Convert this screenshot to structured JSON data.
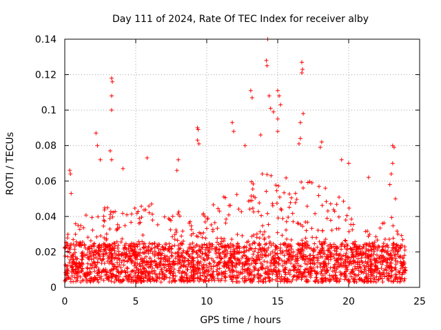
{
  "chart_data": {
    "type": "scatter",
    "title": "Day 111 of 2024, Rate Of TEC Index for receiver alby",
    "xlabel": "GPS time / hours",
    "ylabel": "ROTI / TECUs",
    "xlim": [
      0,
      25
    ],
    "ylim": [
      0,
      0.14
    ],
    "xticks": [
      0,
      5,
      10,
      15,
      20,
      25
    ],
    "xtick_labels": [
      "0",
      "5",
      "10",
      "15",
      "20",
      "25"
    ],
    "yticks": [
      0,
      0.02,
      0.04,
      0.06,
      0.08,
      0.1,
      0.12,
      0.14
    ],
    "ytick_labels": [
      "0",
      "0.02",
      "0.04",
      "0.06",
      "0.08",
      "0.1",
      "0.12",
      "0.14"
    ],
    "grid": true,
    "marker": "+",
    "marker_color": "#ff0000",
    "series": [
      {
        "name": "ROTI",
        "data_extent_hours": [
          0,
          24
        ],
        "notable_points": [
          {
            "x": 0.35,
            "y": 0.066
          },
          {
            "x": 0.4,
            "y": 0.064
          },
          {
            "x": 0.45,
            "y": 0.053
          },
          {
            "x": 2.2,
            "y": 0.087
          },
          {
            "x": 2.3,
            "y": 0.08
          },
          {
            "x": 2.5,
            "y": 0.072
          },
          {
            "x": 3.3,
            "y": 0.118
          },
          {
            "x": 3.35,
            "y": 0.116
          },
          {
            "x": 3.3,
            "y": 0.108
          },
          {
            "x": 3.3,
            "y": 0.1
          },
          {
            "x": 3.2,
            "y": 0.077
          },
          {
            "x": 3.3,
            "y": 0.072
          },
          {
            "x": 4.1,
            "y": 0.067
          },
          {
            "x": 5.8,
            "y": 0.073
          },
          {
            "x": 8.0,
            "y": 0.072
          },
          {
            "x": 7.9,
            "y": 0.066
          },
          {
            "x": 9.35,
            "y": 0.09
          },
          {
            "x": 9.4,
            "y": 0.089
          },
          {
            "x": 9.35,
            "y": 0.083
          },
          {
            "x": 9.45,
            "y": 0.081
          },
          {
            "x": 11.8,
            "y": 0.093
          },
          {
            "x": 11.9,
            "y": 0.088
          },
          {
            "x": 12.7,
            "y": 0.08
          },
          {
            "x": 13.1,
            "y": 0.111
          },
          {
            "x": 13.2,
            "y": 0.107
          },
          {
            "x": 13.8,
            "y": 0.086
          },
          {
            "x": 14.2,
            "y": 0.128
          },
          {
            "x": 14.25,
            "y": 0.125
          },
          {
            "x": 14.3,
            "y": 0.14
          },
          {
            "x": 14.4,
            "y": 0.108
          },
          {
            "x": 14.5,
            "y": 0.101
          },
          {
            "x": 14.7,
            "y": 0.099
          },
          {
            "x": 15.0,
            "y": 0.111
          },
          {
            "x": 15.1,
            "y": 0.108
          },
          {
            "x": 15.0,
            "y": 0.095
          },
          {
            "x": 15.2,
            "y": 0.103
          },
          {
            "x": 15.0,
            "y": 0.088
          },
          {
            "x": 16.7,
            "y": 0.127
          },
          {
            "x": 16.75,
            "y": 0.123
          },
          {
            "x": 16.7,
            "y": 0.121
          },
          {
            "x": 16.8,
            "y": 0.098
          },
          {
            "x": 16.6,
            "y": 0.093
          },
          {
            "x": 16.6,
            "y": 0.084
          },
          {
            "x": 16.5,
            "y": 0.081
          },
          {
            "x": 18.1,
            "y": 0.082
          },
          {
            "x": 18.0,
            "y": 0.079
          },
          {
            "x": 19.5,
            "y": 0.072
          },
          {
            "x": 20.0,
            "y": 0.07
          },
          {
            "x": 21.4,
            "y": 0.062
          },
          {
            "x": 23.1,
            "y": 0.08
          },
          {
            "x": 23.2,
            "y": 0.079
          },
          {
            "x": 23.1,
            "y": 0.07
          },
          {
            "x": 23.0,
            "y": 0.064
          },
          {
            "x": 22.9,
            "y": 0.058
          },
          {
            "x": 23.3,
            "y": 0.05
          }
        ],
        "envelope": [
          {
            "x": 0,
            "y": 0.035
          },
          {
            "x": 1,
            "y": 0.04
          },
          {
            "x": 2,
            "y": 0.045
          },
          {
            "x": 3,
            "y": 0.05
          },
          {
            "x": 4,
            "y": 0.045
          },
          {
            "x": 5,
            "y": 0.045
          },
          {
            "x": 6,
            "y": 0.05
          },
          {
            "x": 7,
            "y": 0.04
          },
          {
            "x": 8,
            "y": 0.045
          },
          {
            "x": 9,
            "y": 0.04
          },
          {
            "x": 10,
            "y": 0.045
          },
          {
            "x": 11,
            "y": 0.05
          },
          {
            "x": 12,
            "y": 0.055
          },
          {
            "x": 13,
            "y": 0.06
          },
          {
            "x": 14,
            "y": 0.065
          },
          {
            "x": 15,
            "y": 0.065
          },
          {
            "x": 16,
            "y": 0.06
          },
          {
            "x": 17,
            "y": 0.06
          },
          {
            "x": 18,
            "y": 0.06
          },
          {
            "x": 19,
            "y": 0.055
          },
          {
            "x": 20,
            "y": 0.045
          },
          {
            "x": 21,
            "y": 0.035
          },
          {
            "x": 22,
            "y": 0.035
          },
          {
            "x": 23,
            "y": 0.04
          },
          {
            "x": 24,
            "y": 0.03
          }
        ],
        "baseline_range": [
          0.003,
          0.025
        ]
      }
    ]
  }
}
